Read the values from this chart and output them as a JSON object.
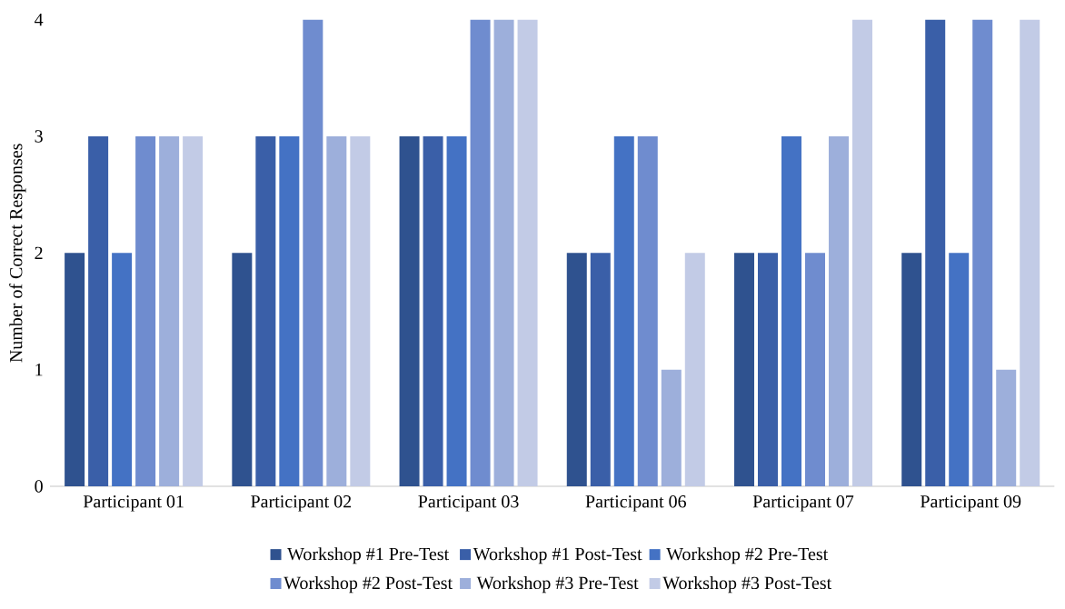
{
  "chart_data": {
    "type": "bar",
    "ylabel": "Number of Correct Responses",
    "categories": [
      "Participant 01",
      "Participant 02",
      "Participant 03",
      "Participant 06",
      "Participant 07",
      "Participant 09"
    ],
    "series": [
      {
        "name": "Workshop #1 Pre-Test",
        "color": "#2f528f",
        "values": [
          2,
          2,
          3,
          2,
          2,
          2
        ]
      },
      {
        "name": "Workshop #1 Post-Test",
        "color": "#3a5fa8",
        "values": [
          3,
          3,
          3,
          2,
          2,
          4
        ]
      },
      {
        "name": "Workshop #2 Pre-Test",
        "color": "#4472c4",
        "values": [
          2,
          3,
          3,
          3,
          3,
          2
        ]
      },
      {
        "name": "Workshop #2 Post-Test",
        "color": "#6f8ccf",
        "values": [
          3,
          4,
          4,
          3,
          2,
          4
        ]
      },
      {
        "name": "Workshop #3 Pre-Test",
        "color": "#9dafdb",
        "values": [
          3,
          3,
          4,
          1,
          3,
          1
        ]
      },
      {
        "name": "Workshop #3 Post-Test",
        "color": "#c2cbe6",
        "values": [
          3,
          3,
          4,
          2,
          4,
          4
        ]
      }
    ],
    "ylim": [
      0,
      4
    ],
    "yticks": [
      0,
      1,
      2,
      3,
      4
    ],
    "legend": "bottom"
  }
}
